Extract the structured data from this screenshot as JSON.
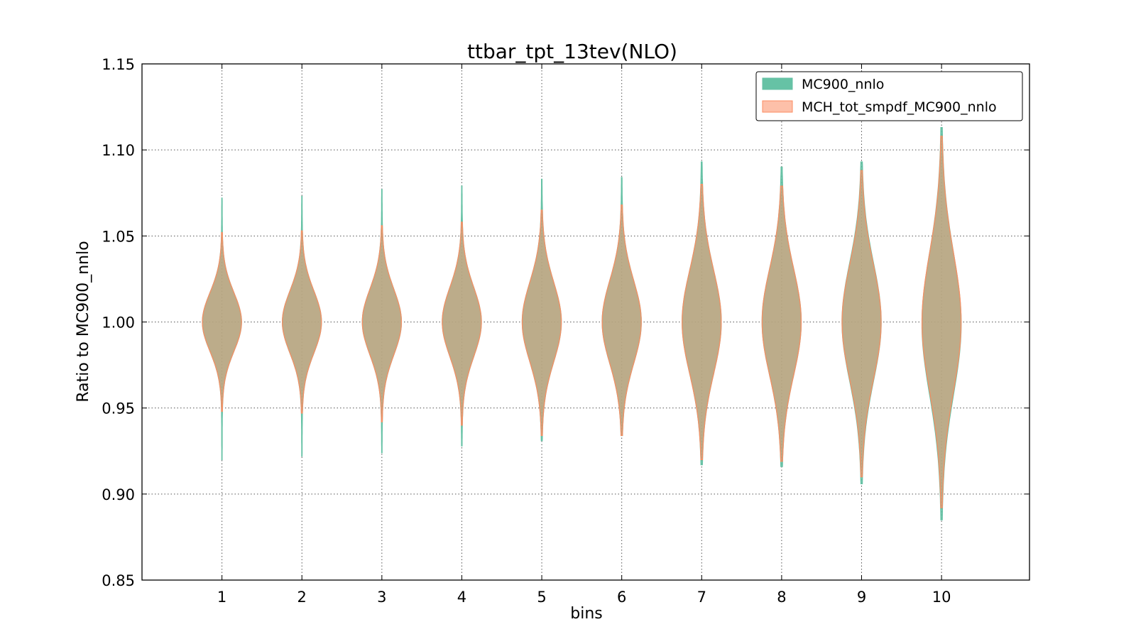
{
  "chart_data": {
    "type": "violin",
    "title": "ttbar_tpt_13tev(NLO)",
    "xlabel": "bins",
    "ylabel": "Ratio to MC900_nnlo",
    "ylim": [
      0.85,
      1.15
    ],
    "xlim": [
      0,
      11.1
    ],
    "yticks": [
      "0.85",
      "0.90",
      "0.95",
      "1.00",
      "1.05",
      "1.10",
      "1.15"
    ],
    "xticks": [
      "1",
      "2",
      "3",
      "4",
      "5",
      "6",
      "7",
      "8",
      "9",
      "10"
    ],
    "grid": true,
    "legend_position": "upper right",
    "categories": [
      1,
      2,
      3,
      4,
      5,
      6,
      7,
      8,
      9,
      10
    ],
    "series": [
      {
        "name": "MC900_nnlo",
        "color": "#66c2a5",
        "edge": "#66c2a5",
        "min": [
          0.92,
          0.922,
          0.924,
          0.928,
          0.931,
          0.934,
          0.917,
          0.916,
          0.906,
          0.885
        ],
        "max": [
          1.072,
          1.073,
          1.077,
          1.079,
          1.083,
          1.084,
          1.093,
          1.09,
          1.093,
          1.113
        ],
        "center": [
          1.0,
          1.0,
          1.0,
          1.0,
          1.0,
          1.0,
          1.0,
          1.0,
          1.0,
          0.999
        ],
        "spread": [
          0.017,
          0.018,
          0.019,
          0.02,
          0.023,
          0.024,
          0.03,
          0.031,
          0.034,
          0.041
        ]
      },
      {
        "name": "MCH_tot_smpdf_MC900_nnlo",
        "color": "#fc8d62",
        "edge": "#fc8d62",
        "min": [
          0.948,
          0.947,
          0.942,
          0.94,
          0.934,
          0.934,
          0.92,
          0.919,
          0.91,
          0.892
        ],
        "max": [
          1.052,
          1.053,
          1.056,
          1.058,
          1.065,
          1.068,
          1.08,
          1.079,
          1.088,
          1.108
        ],
        "center": [
          1.0,
          1.0,
          1.0,
          1.0,
          1.0,
          1.0,
          1.0,
          1.0,
          1.0,
          1.0
        ],
        "spread": [
          0.017,
          0.018,
          0.019,
          0.02,
          0.023,
          0.024,
          0.03,
          0.031,
          0.033,
          0.04
        ]
      }
    ]
  }
}
